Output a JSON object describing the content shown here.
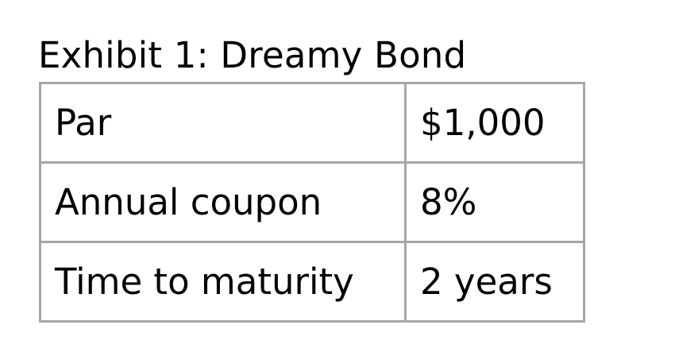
{
  "exhibit": {
    "title": "Exhibit 1: Dreamy Bond",
    "rows": [
      {
        "label": "Par",
        "value": "$1,000"
      },
      {
        "label": "Annual coupon",
        "value": "8%"
      },
      {
        "label": "Time to maturity",
        "value": "2 years"
      }
    ]
  },
  "colors": {
    "text": "#000000",
    "border": "#a6a6a6",
    "background": "#ffffff"
  }
}
